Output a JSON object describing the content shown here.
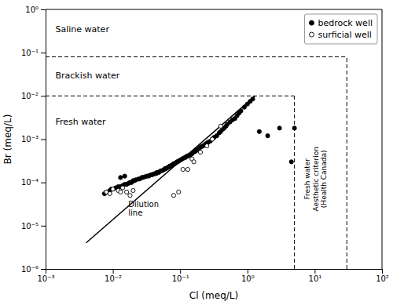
{
  "chart_data": {
    "type": "scatter",
    "log": true,
    "grid": false,
    "legend": "upper right",
    "xlabel": "Cl (meq/L)",
    "ylabel": "Br (meq/L)",
    "xlim": [
      0.001,
      100
    ],
    "ylim": [
      1e-06,
      1
    ],
    "xticks": [
      {
        "value": 0.001,
        "label": "10⁻³"
      },
      {
        "value": 0.01,
        "label": "10⁻²"
      },
      {
        "value": 0.1,
        "label": "10⁻¹"
      },
      {
        "value": 1,
        "label": "10⁰"
      },
      {
        "value": 10,
        "label": "10¹"
      },
      {
        "value": 100,
        "label": "10²"
      }
    ],
    "yticks": [
      {
        "value": 1e-06,
        "label": "10⁻⁶"
      },
      {
        "value": 1e-05,
        "label": "10⁻⁵"
      },
      {
        "value": 0.0001,
        "label": "10⁻⁴"
      },
      {
        "value": 0.001,
        "label": "10⁻³"
      },
      {
        "value": 0.01,
        "label": "10⁻²"
      },
      {
        "value": 0.1,
        "label": "10⁻¹"
      },
      {
        "value": 1,
        "label": "10⁰"
      }
    ],
    "series": [
      {
        "name": "bedrock well",
        "color": "black",
        "marker": "filled-circle",
        "x": [
          0.0075,
          0.008,
          0.009,
          0.0095,
          0.01,
          0.011,
          0.012,
          0.013,
          0.014,
          0.015,
          0.016,
          0.017,
          0.018,
          0.019,
          0.02,
          0.021,
          0.022,
          0.024,
          0.025,
          0.027,
          0.028,
          0.03,
          0.032,
          0.034,
          0.035,
          0.037,
          0.038,
          0.04,
          0.042,
          0.044,
          0.045,
          0.048,
          0.05,
          0.052,
          0.055,
          0.058,
          0.06,
          0.062,
          0.065,
          0.068,
          0.07,
          0.072,
          0.075,
          0.078,
          0.08,
          0.082,
          0.085,
          0.088,
          0.09,
          0.092,
          0.095,
          0.1,
          0.105,
          0.11,
          0.115,
          0.12,
          0.125,
          0.13,
          0.135,
          0.14,
          0.145,
          0.15,
          0.16,
          0.17,
          0.18,
          0.19,
          0.2,
          0.21,
          0.22,
          0.23,
          0.24,
          0.25,
          0.26,
          0.28,
          0.3,
          0.32,
          0.35,
          0.38,
          0.4,
          0.43,
          0.45,
          0.48,
          0.5,
          0.55,
          0.6,
          0.65,
          0.7,
          0.75,
          0.8,
          0.9,
          1.0,
          1.1,
          1.2,
          1.5,
          2.0,
          3.0,
          4.5,
          5.0,
          0.013,
          0.015
        ],
        "values": [
          5.5e-05,
          6e-05,
          6.5e-05,
          7e-05,
          7e-05,
          7.5e-05,
          8e-05,
          8e-05,
          8.5e-05,
          9e-05,
          9e-05,
          9.5e-05,
          0.0001,
          0.0001,
          0.00011,
          0.00011,
          0.000115,
          0.00012,
          0.00012,
          0.00013,
          0.00013,
          0.000135,
          0.00014,
          0.00014,
          0.000145,
          0.00015,
          0.00015,
          0.000155,
          0.00016,
          0.00016,
          0.00017,
          0.00017,
          0.00018,
          0.000185,
          0.00019,
          0.0002,
          0.00021,
          0.00021,
          0.00022,
          0.00023,
          0.00024,
          0.00024,
          0.00025,
          0.00026,
          0.00027,
          0.00027,
          0.00028,
          0.00029,
          0.0003,
          0.0003,
          0.00031,
          0.00033,
          0.00034,
          0.00036,
          0.00037,
          0.00038,
          0.0004,
          0.00041,
          0.00042,
          0.00043,
          0.00045,
          0.00046,
          0.0005,
          0.00053,
          0.00057,
          0.0006,
          0.00065,
          0.00068,
          0.0007,
          0.00073,
          0.00078,
          0.0008,
          0.00085,
          0.0009,
          0.001,
          0.0011,
          0.0012,
          0.0014,
          0.0015,
          0.0017,
          0.0018,
          0.002,
          0.0022,
          0.0025,
          0.0028,
          0.003,
          0.0035,
          0.004,
          0.0045,
          0.0055,
          0.0065,
          0.0075,
          0.0085,
          0.0015,
          0.0012,
          0.0018,
          0.0003,
          0.0018,
          0.00013,
          0.00014
        ]
      },
      {
        "name": "surficial well",
        "color": "black",
        "marker": "open-circle",
        "x": [
          0.008,
          0.009,
          0.01,
          0.012,
          0.013,
          0.014,
          0.016,
          0.018,
          0.02,
          0.08,
          0.095,
          0.11,
          0.15,
          0.2,
          0.25,
          0.3,
          0.4,
          0.13,
          0.16
        ],
        "values": [
          6e-05,
          5.5e-05,
          7e-05,
          6.5e-05,
          6e-05,
          7.5e-05,
          6e-05,
          5e-05,
          6.5e-05,
          5e-05,
          6e-05,
          0.0002,
          0.00035,
          0.0005,
          0.0007,
          0.001,
          0.002,
          0.0002,
          0.0003
        ]
      }
    ],
    "lines": [
      {
        "color": "black",
        "line_style": "solid",
        "x": [
          0.004,
          1.3
        ],
        "values": [
          4e-06,
          0.01
        ]
      },
      {
        "color": "black",
        "line_style": "dashed",
        "x": [
          0.001,
          5.0
        ],
        "values": [
          0.01,
          0.01
        ]
      },
      {
        "color": "black",
        "line_style": "dashed",
        "x": [
          0.001,
          30.0
        ],
        "values": [
          0.08,
          0.08
        ]
      },
      {
        "color": "black",
        "line_style": "dashed",
        "x": [
          5.0,
          5.0
        ],
        "values": [
          1e-06,
          0.01
        ]
      },
      {
        "color": "black",
        "line_style": "dashed",
        "x": [
          30.0,
          30.0
        ],
        "values": [
          1e-06,
          0.08
        ]
      }
    ],
    "annotations": [
      {
        "text": "Saline water",
        "x": 0.0014,
        "y": 0.35
      },
      {
        "text": "Brackish water",
        "x": 0.0014,
        "y": 0.03
      },
      {
        "text": "Fresh water",
        "x": 0.0014,
        "y": 0.0025
      },
      {
        "text": "Dilution\nline",
        "x": 0.017,
        "y": 4e-05
      },
      {
        "text": "Fresh water\nAesthetic criterion\n(Health Canada)",
        "x": 6.5,
        "y": 0.00012
      }
    ]
  }
}
